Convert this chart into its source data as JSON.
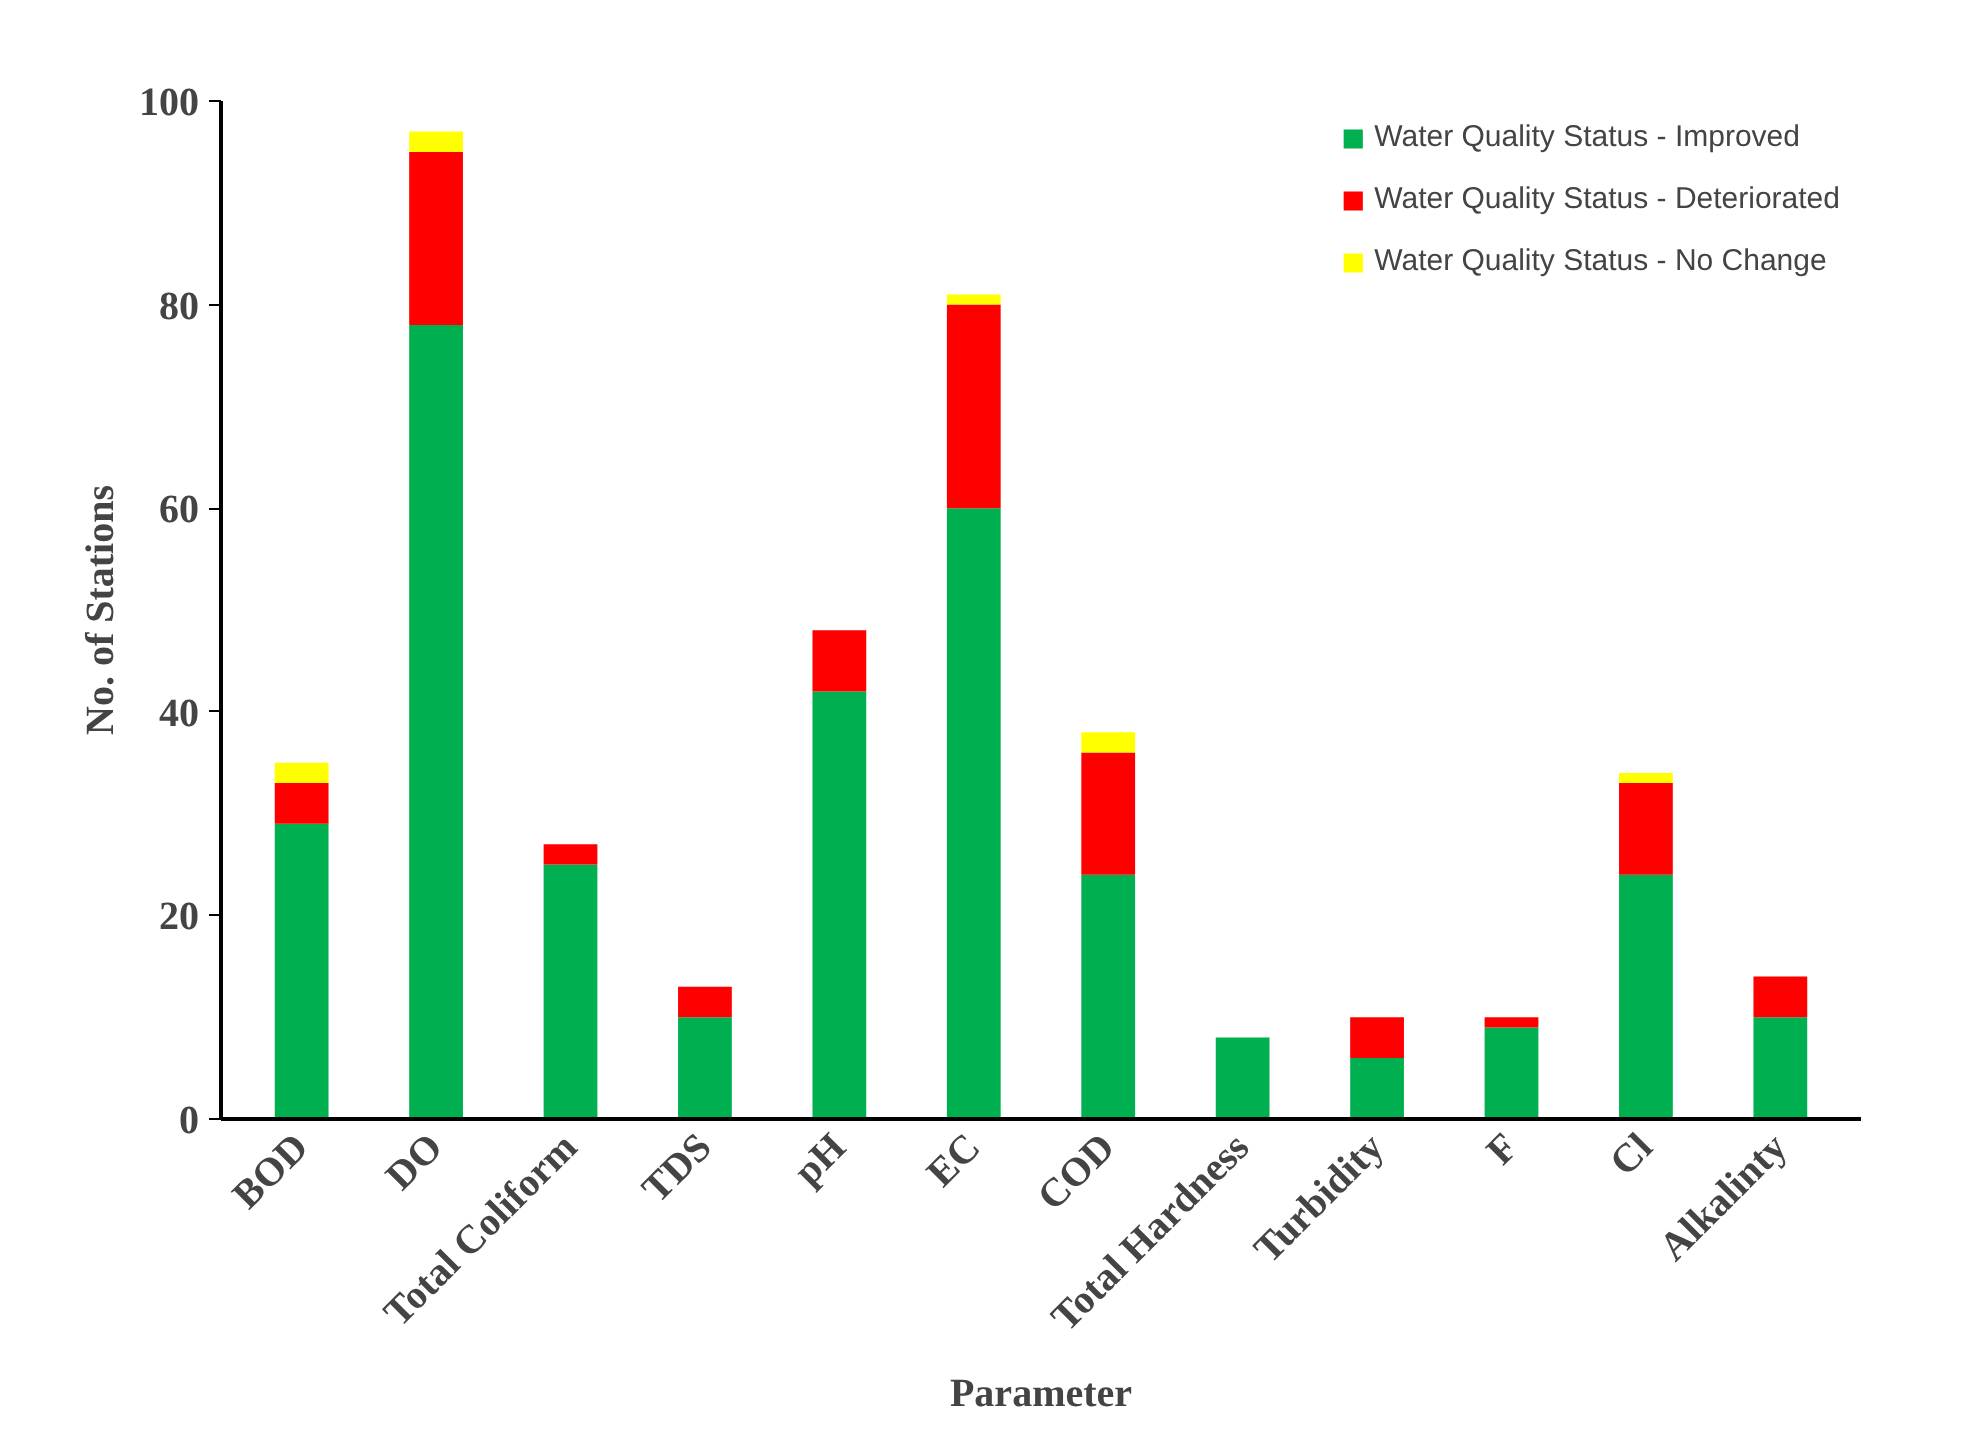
{
  "chart_data": {
    "type": "bar",
    "stacked": true,
    "xlabel": "Parameter",
    "ylabel": "No. of Stations",
    "categories": [
      "BOD",
      "DO",
      "Total Coliform",
      "TDS",
      "pH",
      "EC",
      "COD",
      "Total Hardness",
      "Turbidity",
      "F",
      "Cl",
      "Alkalinty"
    ],
    "series": [
      {
        "name": "Water Quality Status - Improved",
        "color": "#00b050",
        "values": [
          29,
          78,
          25,
          10,
          42,
          60,
          24,
          8,
          6,
          9,
          24,
          10
        ]
      },
      {
        "name": "Water Quality Status - Deteriorated",
        "color": "#ff0000",
        "values": [
          4,
          17,
          2,
          3,
          6,
          20,
          12,
          0,
          4,
          1,
          9,
          4
        ]
      },
      {
        "name": "Water Quality Status - No Change",
        "color": "#ffff00",
        "values": [
          2,
          2,
          0,
          0,
          0,
          1,
          2,
          0,
          0,
          0,
          1,
          0
        ]
      }
    ],
    "ylim": [
      0,
      100
    ],
    "yticks": [
      0,
      20,
      40,
      60,
      80,
      100
    ],
    "grid": false,
    "legend": "top right"
  }
}
